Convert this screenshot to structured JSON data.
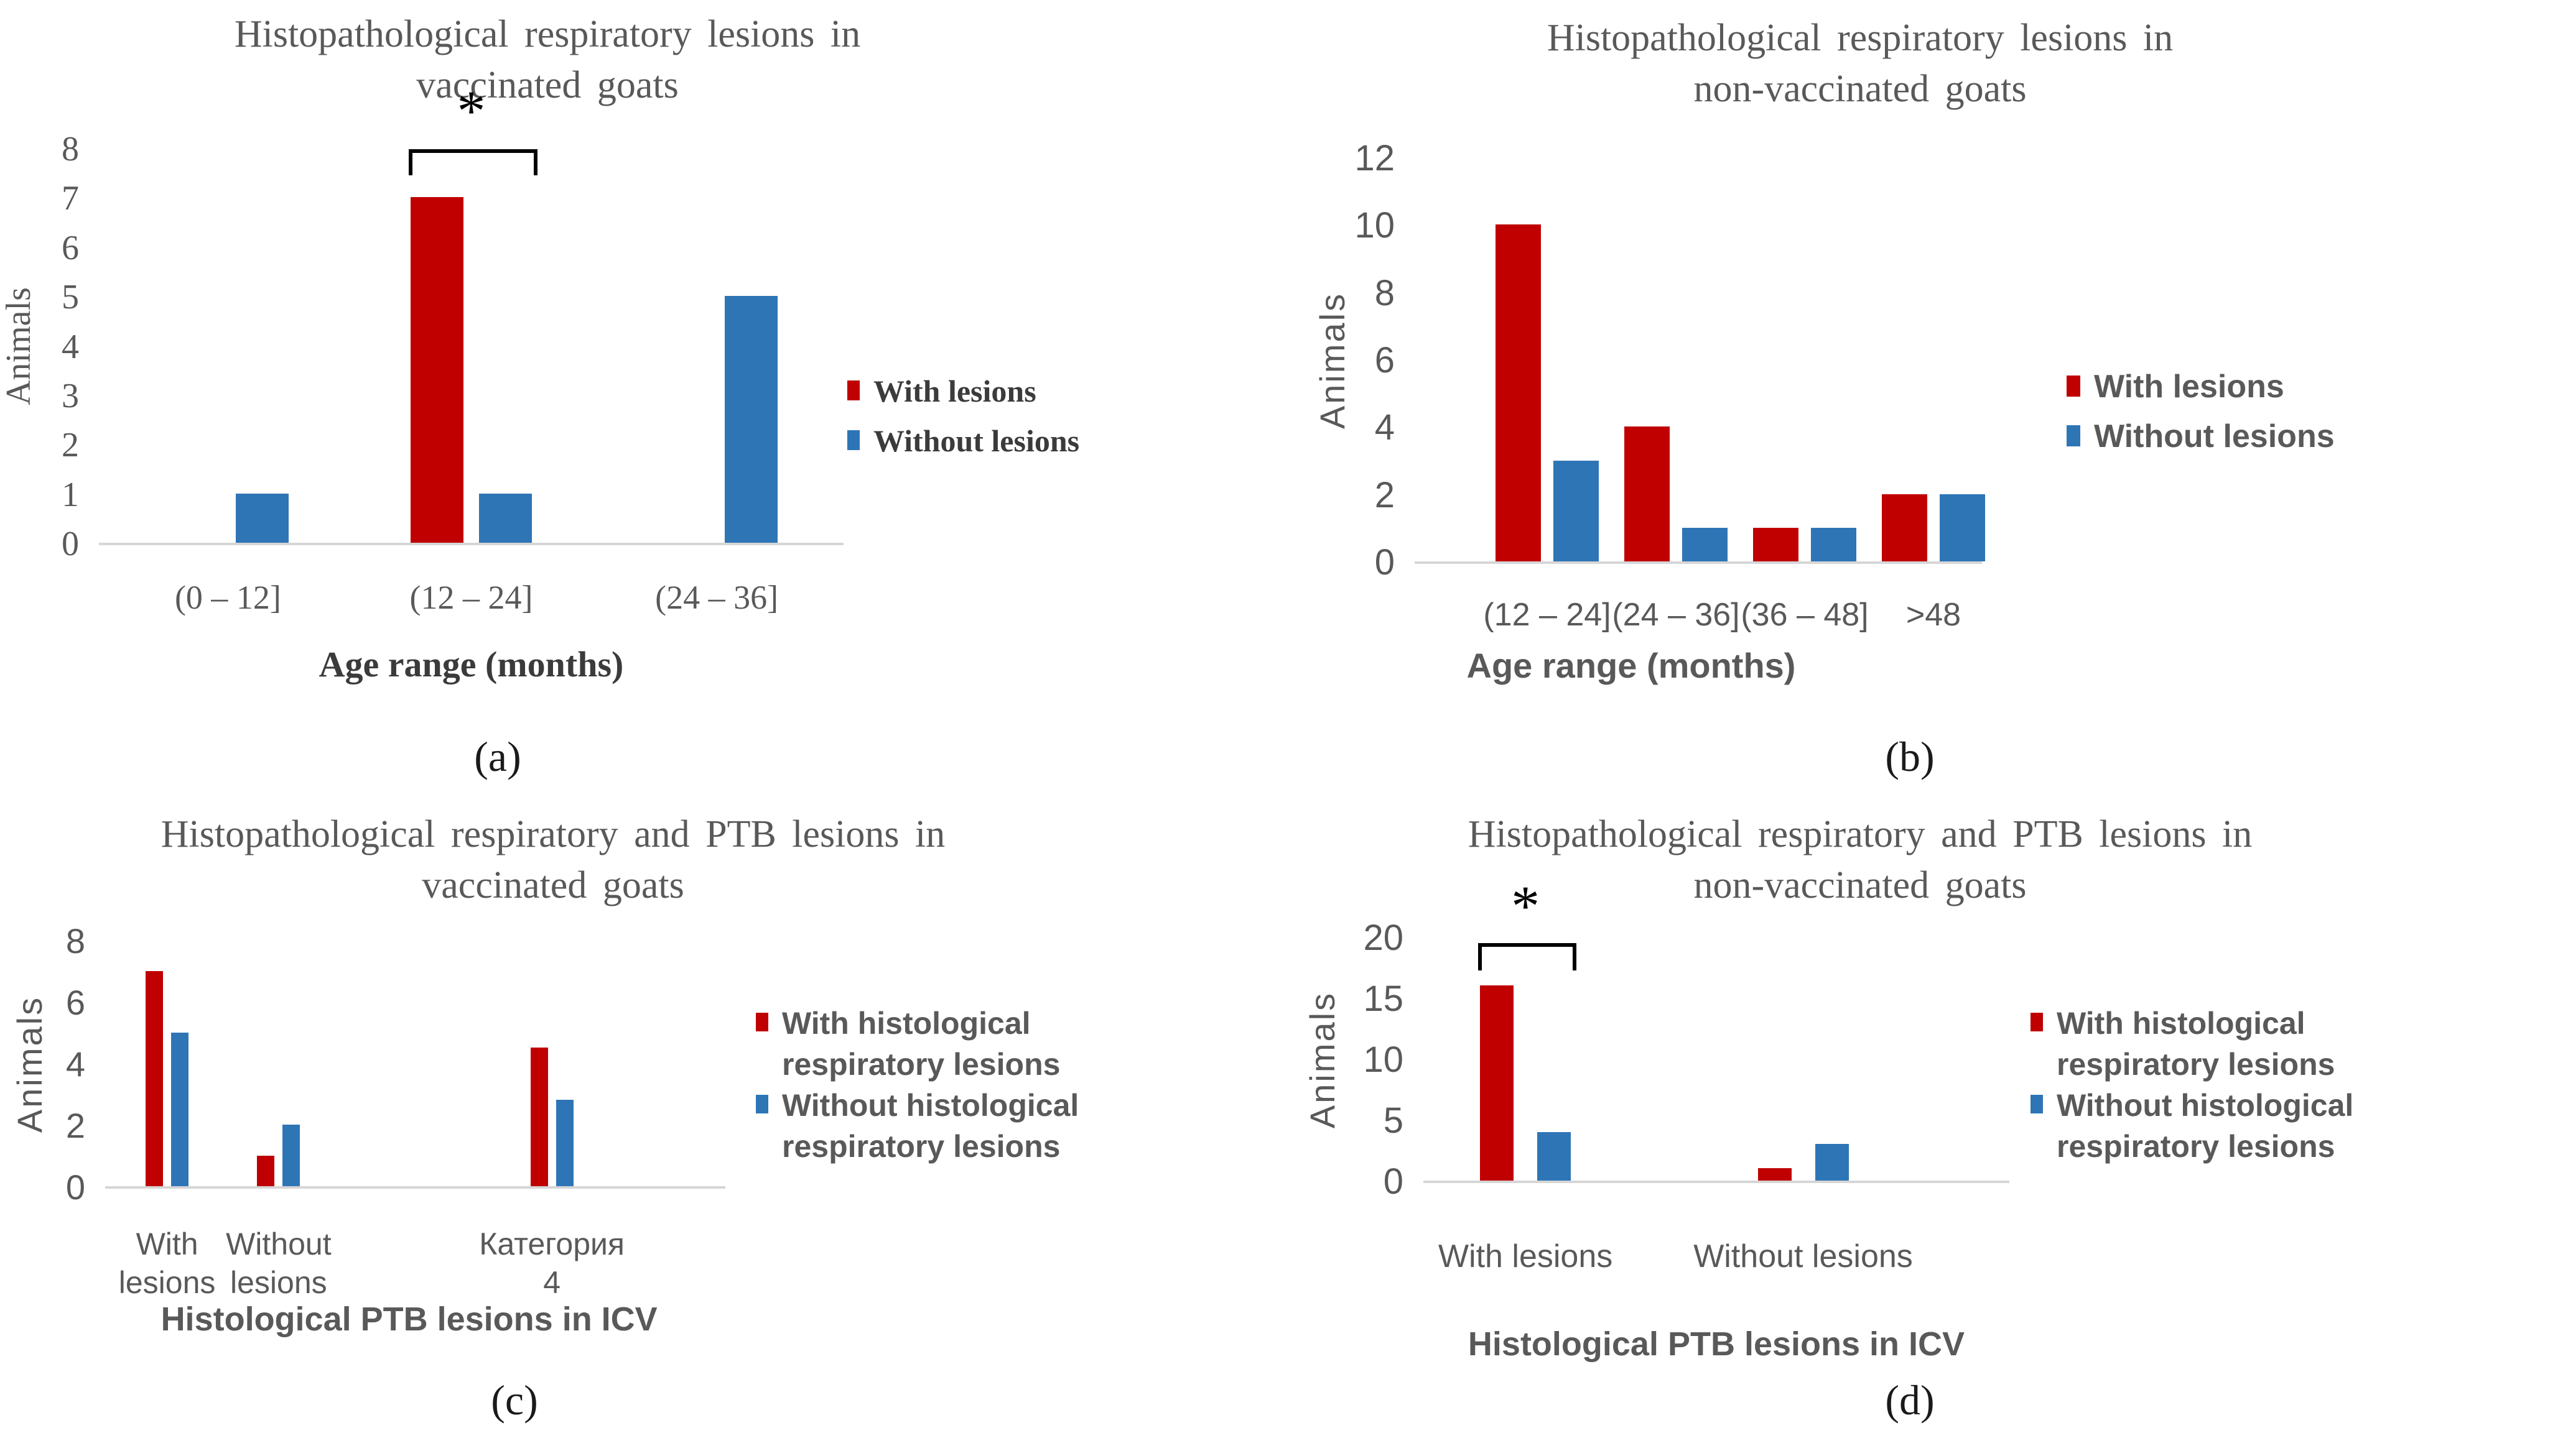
{
  "colors": {
    "with_lesions_red": "#C00000",
    "without_lesions_blue": "#2E75B6",
    "text_gray": "#595959",
    "axis_line_gray": "#D6D6D6",
    "annotation_black": "#000000"
  },
  "chart_data": [
    {
      "id": "a",
      "type": "bar",
      "title": "Histopathological respiratory lesions in\nvaccinated goats",
      "ylabel": "Animals",
      "xlabel": "Age range (months)",
      "sublabel": "(a)",
      "ylim": [
        0,
        8
      ],
      "ytick_step": 1,
      "grid": false,
      "legend_position": "right",
      "categories": [
        "(0 – 12]",
        "(12 – 24]",
        "(24 – 36]"
      ],
      "category_center_pct": [
        17,
        50,
        83.3
      ],
      "series": [
        {
          "name": "With lesions",
          "color": "#C00000",
          "values": [
            0,
            7,
            0
          ]
        },
        {
          "name": "Without lesions",
          "color": "#2E75B6",
          "values": [
            1,
            1,
            5
          ]
        }
      ],
      "significance": {
        "symbol": "*",
        "category_index": 1
      }
    },
    {
      "id": "b",
      "type": "bar",
      "title": "Histopathological respiratory lesions in\nnon-vaccinated goats",
      "ylabel": "Animals",
      "xlabel": "Age range (months)",
      "sublabel": "(b)",
      "ylim": [
        0,
        12
      ],
      "ytick_step": 2,
      "grid": false,
      "legend_position": "right",
      "categories": [
        "(12 – 24]",
        "(24 – 36]",
        "(36 – 48]",
        ">48"
      ],
      "category_center_pct": [
        23,
        46,
        69,
        92
      ],
      "series": [
        {
          "name": "With lesions",
          "color": "#C00000",
          "values": [
            10,
            4,
            1,
            2
          ]
        },
        {
          "name": "Without lesions",
          "color": "#2E75B6",
          "values": [
            3,
            1,
            1,
            2
          ]
        }
      ],
      "significance": null
    },
    {
      "id": "c",
      "type": "bar",
      "title": "Histopathological respiratory and PTB lesions in\nvaccinated goats",
      "ylabel": "Animals",
      "xlabel": "Histological PTB lesions in ICV",
      "sublabel": "(c)",
      "ylim": [
        0,
        8
      ],
      "ytick_step": 2,
      "grid": false,
      "legend_position": "right",
      "categories": [
        "With\nlesions",
        "Without\nlesions",
        "Категория\n4"
      ],
      "category_center_pct": [
        9.5,
        27.7,
        72.3
      ],
      "series": [
        {
          "name": "With histological\nrespiratory lesions",
          "color": "#C00000",
          "values": [
            7,
            1,
            4.5
          ]
        },
        {
          "name": "Without histological\nrespiratory lesions",
          "color": "#2E75B6",
          "values": [
            5,
            2,
            2.8
          ]
        }
      ],
      "significance": null
    },
    {
      "id": "d",
      "type": "bar",
      "title": "Histopathological respiratory and PTB lesions in\nnon-vaccinated goats",
      "ylabel": "Animals",
      "xlabel": "Histological PTB lesions in ICV",
      "sublabel": "(d)",
      "ylim": [
        0,
        20
      ],
      "ytick_step": 5,
      "grid": false,
      "legend_position": "right",
      "categories": [
        "With lesions",
        "Without lesions"
      ],
      "category_center_pct": [
        17,
        65
      ],
      "series": [
        {
          "name": "With histological\nrespiratory lesions",
          "color": "#C00000",
          "values": [
            16,
            1
          ]
        },
        {
          "name": "Without histological\nrespiratory lesions",
          "color": "#2E75B6",
          "values": [
            4,
            3
          ]
        }
      ],
      "significance": {
        "symbol": "*",
        "category_index": 0
      }
    }
  ]
}
